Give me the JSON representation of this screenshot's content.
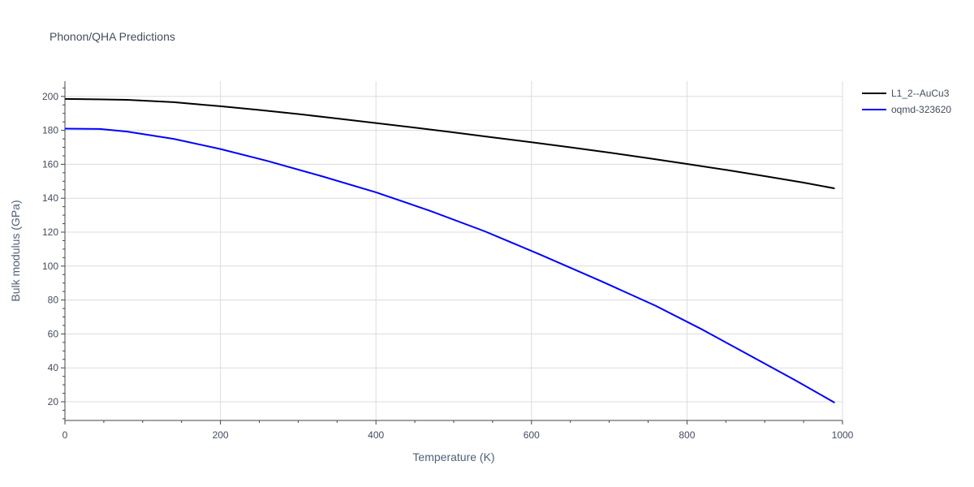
{
  "chart_data": {
    "type": "line",
    "title": "Phonon/QHA Predictions",
    "xlabel": "Temperature (K)",
    "ylabel": "Bulk modulus (GPa)",
    "xlim": [
      0,
      1000
    ],
    "ylim": [
      9,
      209
    ],
    "x_ticks": [
      0,
      200,
      400,
      600,
      800,
      1000
    ],
    "y_ticks": [
      20,
      40,
      60,
      80,
      100,
      120,
      140,
      160,
      180,
      200
    ],
    "grid": true,
    "legend_position": "top-right",
    "series": [
      {
        "name": "L1_2--AuCu3",
        "color": "#000000",
        "x": [
          0,
          40,
          80,
          140,
          200,
          250,
          300,
          350,
          400,
          450,
          500,
          550,
          600,
          650,
          700,
          750,
          800,
          850,
          900,
          950,
          990
        ],
        "y": [
          198.5,
          198.3,
          198.0,
          196.6,
          194.2,
          192.0,
          189.6,
          187.0,
          184.3,
          181.6,
          178.8,
          175.9,
          173.0,
          170.0,
          166.9,
          163.6,
          160.2,
          156.7,
          153.0,
          149.2,
          145.8
        ]
      },
      {
        "name": "oqmd-323620",
        "color": "#0000ff",
        "x": [
          0,
          45,
          80,
          140,
          200,
          260,
          330,
          400,
          470,
          540,
          610,
          690,
          760,
          820,
          880,
          940,
          990
        ],
        "y": [
          181.0,
          180.8,
          179.3,
          175.0,
          169.0,
          162.0,
          153.0,
          143.5,
          132.5,
          120.5,
          107.0,
          91.0,
          76.5,
          62.5,
          47.5,
          32.5,
          19.5
        ]
      }
    ]
  }
}
